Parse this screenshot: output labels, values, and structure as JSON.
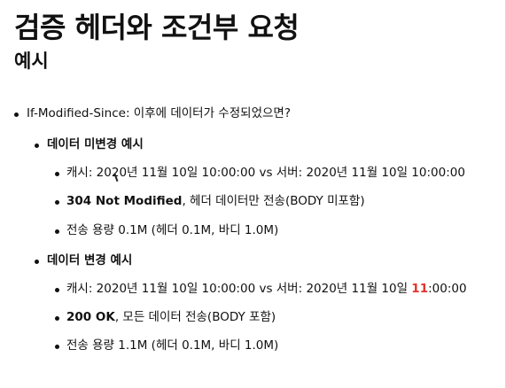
{
  "title": "검증 헤더와 조건부 요청",
  "subtitle": "예시",
  "items": {
    "l1": "If-Modified-Since: 이후에 데이터가 수정되었으면?",
    "unchanged": {
      "heading": "데이터 미변경 예시",
      "cache_line": "캐시: 2020년 11월 10일 10:00:00 vs 서버: 2020년 11월 10일 10:00:00",
      "status_bold": "304 Not Modified",
      "status_rest": ", 헤더 데이터만 전송(BODY 미포함)",
      "size": "전송 용량 0.1M (헤더 0.1M, 바디 1.0M)"
    },
    "changed": {
      "heading": "데이터 변경 예시",
      "cache_prefix": "캐시: 2020년 11월 10일 10:00:00 vs 서버: 2020년 11월 10일 ",
      "cache_highlight": "11",
      "cache_suffix": ":00:00",
      "status_bold": "200 OK",
      "status_rest": ", 모든 데이터 전송(BODY 포함)",
      "size": "전송 용량 1.1M (헤더 0.1M, 바디 1.0M)"
    }
  },
  "colors": {
    "highlight": "#e5322d"
  }
}
